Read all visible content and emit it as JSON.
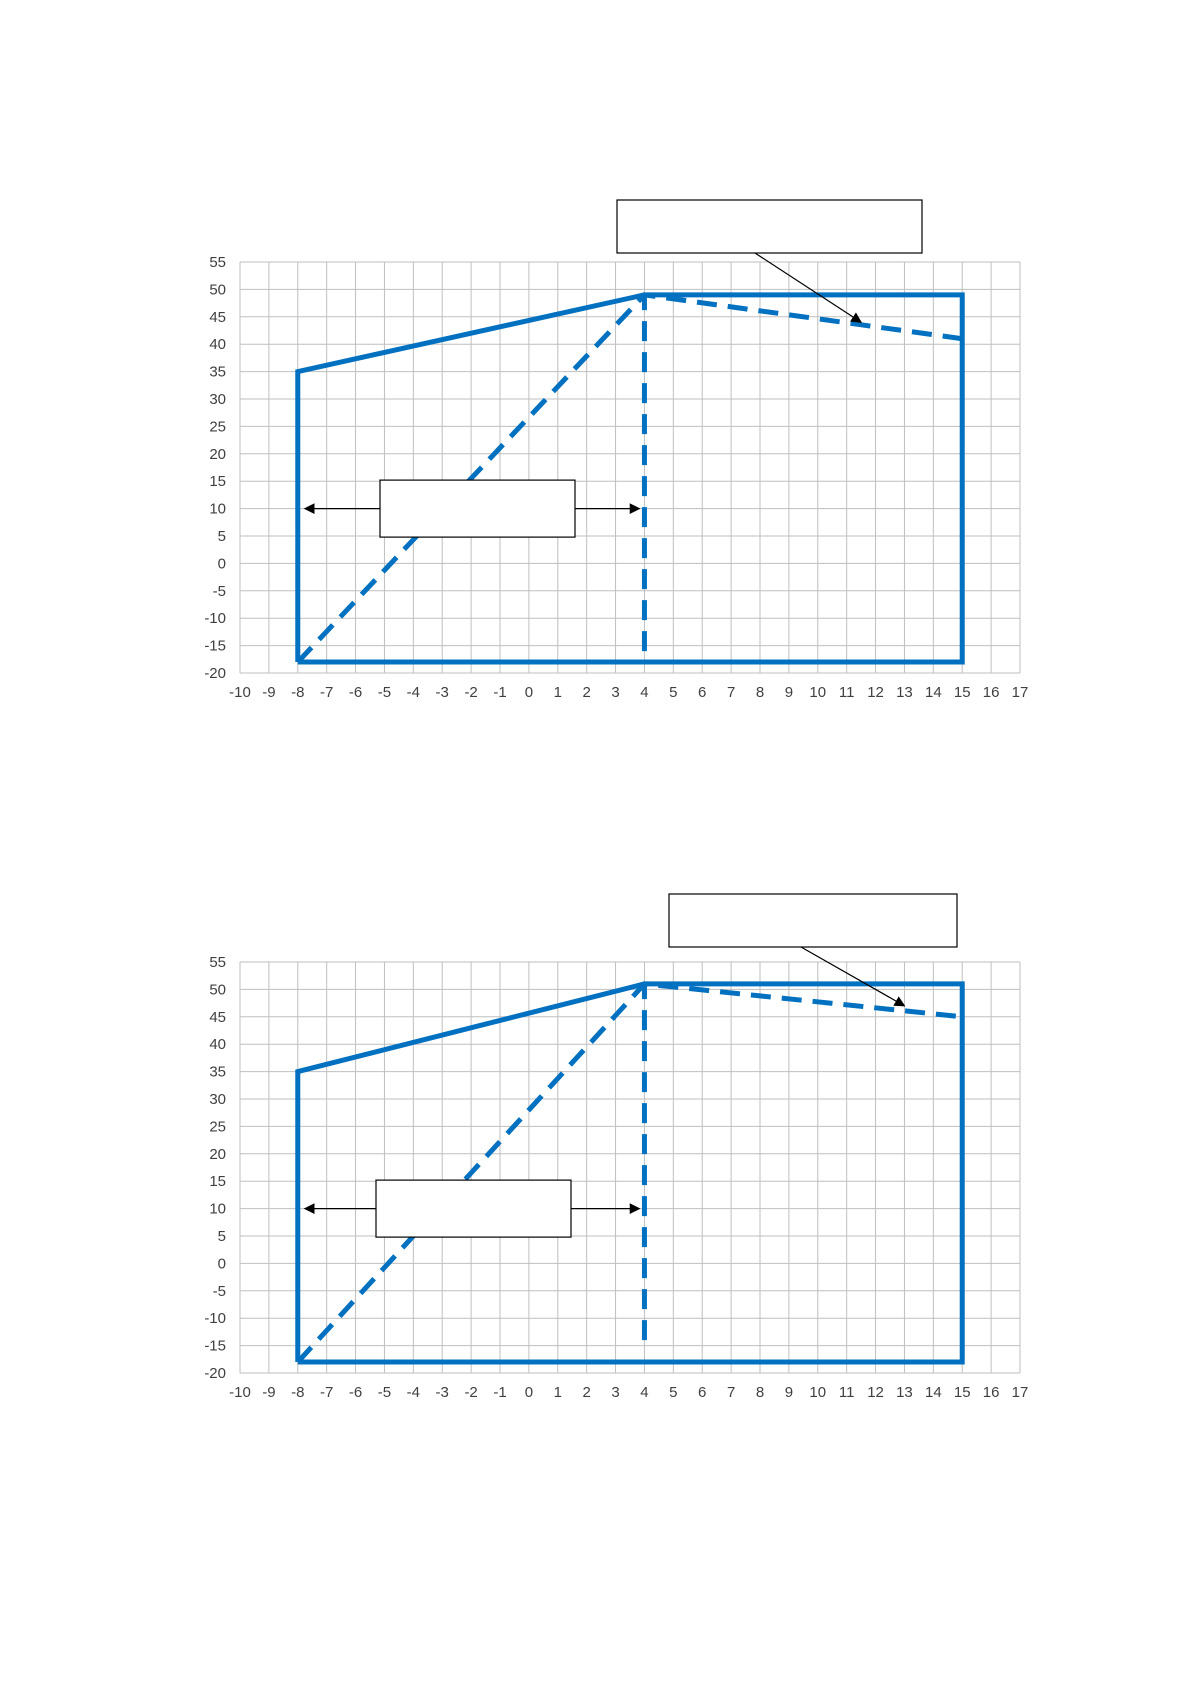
{
  "chart_data": [
    {
      "type": "line",
      "xlim": [
        -10,
        17
      ],
      "ylim": [
        -20,
        55
      ],
      "xticks": [
        -10,
        -9,
        -8,
        -7,
        -6,
        -5,
        -4,
        -3,
        -2,
        -1,
        0,
        1,
        2,
        3,
        4,
        5,
        6,
        7,
        8,
        9,
        10,
        11,
        12,
        13,
        14,
        15,
        16,
        17
      ],
      "yticks": [
        55,
        50,
        45,
        40,
        35,
        30,
        25,
        20,
        15,
        10,
        5,
        0,
        -5,
        -10,
        -15,
        -20
      ],
      "grid": true,
      "color": "#0070c0",
      "series": [
        {
          "style": "solid",
          "x": [
            -8,
            -8,
            4,
            15,
            15,
            -8
          ],
          "y": [
            -18,
            35,
            49,
            49,
            -18,
            -18
          ]
        },
        {
          "style": "dashed",
          "x": [
            -8,
            4,
            15
          ],
          "y": [
            -18,
            49,
            41
          ]
        },
        {
          "style": "dashed",
          "x": [
            4,
            4
          ],
          "y": [
            -16,
            49
          ]
        }
      ],
      "annotations": [
        {
          "text": "",
          "target_x": 11.5,
          "target_y": 44
        },
        {
          "text": "",
          "arrows_y": 10,
          "arrow_to_x": [
            -8,
            4
          ]
        }
      ]
    },
    {
      "type": "line",
      "xlim": [
        -10,
        17
      ],
      "ylim": [
        -20,
        55
      ],
      "xticks": [
        -10,
        -9,
        -8,
        -7,
        -6,
        -5,
        -4,
        -3,
        -2,
        -1,
        0,
        1,
        2,
        3,
        4,
        5,
        6,
        7,
        8,
        9,
        10,
        11,
        12,
        13,
        14,
        15,
        16,
        17
      ],
      "yticks": [
        55,
        50,
        45,
        40,
        35,
        30,
        25,
        20,
        15,
        10,
        5,
        0,
        -5,
        -10,
        -15,
        -20
      ],
      "grid": true,
      "color": "#0070c0",
      "series": [
        {
          "style": "solid",
          "x": [
            -8,
            -8,
            4,
            15,
            15,
            -8
          ],
          "y": [
            -18,
            35,
            51,
            51,
            -18,
            -18
          ]
        },
        {
          "style": "dashed",
          "x": [
            -8,
            4,
            15
          ],
          "y": [
            -18,
            51,
            45
          ]
        },
        {
          "style": "dashed",
          "x": [
            4,
            4
          ],
          "y": [
            -14,
            51
          ]
        }
      ],
      "annotations": [
        {
          "text": "",
          "target_x": 13,
          "target_y": 47
        },
        {
          "text": "",
          "arrows_y": 10,
          "arrow_to_x": [
            -8,
            4
          ]
        }
      ]
    }
  ]
}
